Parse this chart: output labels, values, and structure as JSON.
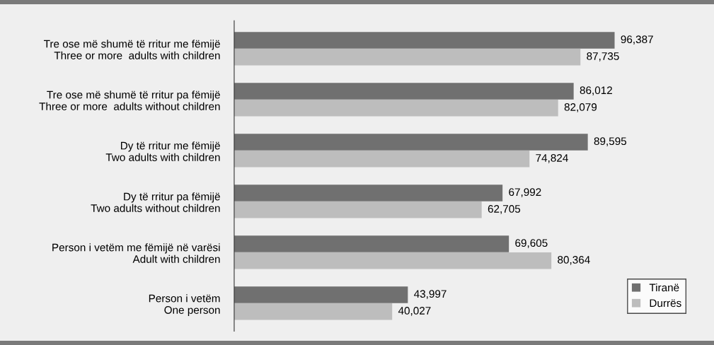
{
  "chart_data": {
    "type": "bar",
    "orientation": "horizontal",
    "legend": "bottom right",
    "grid": false,
    "categories": [
      "Tre ose më shumë të rritur me fëmijë\nThree or more  adults with children",
      "Tre ose më shumë të rritur pa fëmijë\nThree or more  adults without children",
      "Dy të rritur me fëmijë\nTwo adults with children",
      "Dy të rritur pa fëmijë\nTwo adults without children",
      "Person i vetëm me fëmijë në varësi\nAdult with children",
      "Person i vetëm\nOne person"
    ],
    "series": [
      {
        "name": "Tiranë",
        "color": "#707070",
        "values": [
          96387,
          86012,
          89595,
          67992,
          69605,
          43997
        ],
        "value_labels": [
          "96,387",
          "86,012",
          "89,595",
          "67,992",
          "69,605",
          "43,997"
        ]
      },
      {
        "name": "Durrës",
        "color": "#bdbdbd",
        "values": [
          87735,
          82079,
          74824,
          62705,
          80364,
          40027
        ],
        "value_labels": [
          "87,735",
          "82,079",
          "74,824",
          "62,705",
          "80,364",
          "40,027"
        ]
      }
    ]
  }
}
